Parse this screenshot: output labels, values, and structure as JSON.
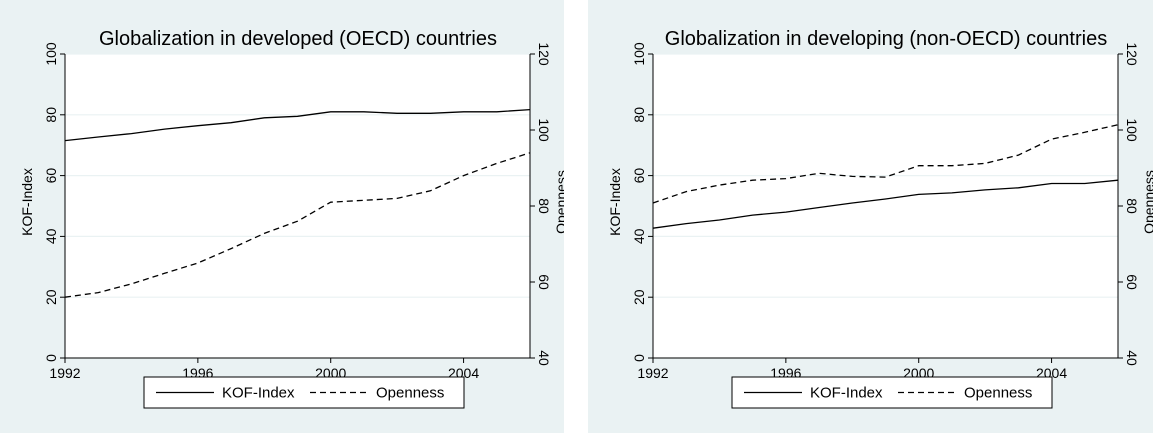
{
  "chart_data": [
    {
      "type": "line",
      "title": "Globalization in developed (OECD) countries",
      "xlabel": "",
      "ylabel": "KOF-Index",
      "y2label": "Openness",
      "x": [
        1992,
        1993,
        1994,
        1995,
        1996,
        1997,
        1998,
        1999,
        2000,
        2001,
        2002,
        2003,
        2004,
        2005,
        2006
      ],
      "xticks": [
        "1992",
        "1996",
        "2000",
        "2004"
      ],
      "ylim": [
        0,
        100
      ],
      "yticks": [
        "0",
        "20",
        "40",
        "60",
        "80",
        "100"
      ],
      "y2lim": [
        40,
        120
      ],
      "y2ticks": [
        "40",
        "60",
        "80",
        "100",
        "120"
      ],
      "legend": "bottom",
      "grid": true,
      "series": [
        {
          "name": "KOF-Index",
          "axis": "left",
          "style": "solid",
          "values": [
            71.5,
            72.7,
            73.8,
            75.3,
            76.4,
            77.4,
            79.0,
            79.5,
            81.0,
            81.0,
            80.5,
            80.5,
            81.0,
            81.0,
            81.7
          ]
        },
        {
          "name": "Openness",
          "axis": "right",
          "style": "dashed",
          "values": [
            56.0,
            57.2,
            59.5,
            62.3,
            65.0,
            68.8,
            72.8,
            76.0,
            81.0,
            81.5,
            82.0,
            84.0,
            88.0,
            91.2,
            94.0
          ]
        }
      ]
    },
    {
      "type": "line",
      "title": "Globalization in developing (non-OECD) countries",
      "xlabel": "",
      "ylabel": "KOF-Index",
      "y2label": "Openness",
      "x": [
        1992,
        1993,
        1994,
        1995,
        1996,
        1997,
        1998,
        1999,
        2000,
        2001,
        2002,
        2003,
        2004,
        2005,
        2006
      ],
      "xticks": [
        "1992",
        "1996",
        "2000",
        "2004"
      ],
      "ylim": [
        0,
        100
      ],
      "yticks": [
        "0",
        "20",
        "40",
        "60",
        "80",
        "100"
      ],
      "y2lim": [
        40,
        120
      ],
      "y2ticks": [
        "40",
        "60",
        "80",
        "100",
        "120"
      ],
      "legend": "bottom",
      "grid": true,
      "series": [
        {
          "name": "KOF-Index",
          "axis": "left",
          "style": "solid",
          "values": [
            42.7,
            44.2,
            45.4,
            47.0,
            48.0,
            49.5,
            51.0,
            52.3,
            53.8,
            54.3,
            55.3,
            56.0,
            57.4,
            57.4,
            58.5
          ]
        },
        {
          "name": "Openness",
          "axis": "right",
          "style": "dashed",
          "values": [
            80.8,
            83.8,
            85.5,
            86.8,
            87.2,
            88.6,
            87.8,
            87.6,
            90.6,
            90.6,
            91.2,
            93.4,
            97.6,
            99.4,
            101.4
          ]
        }
      ]
    }
  ]
}
